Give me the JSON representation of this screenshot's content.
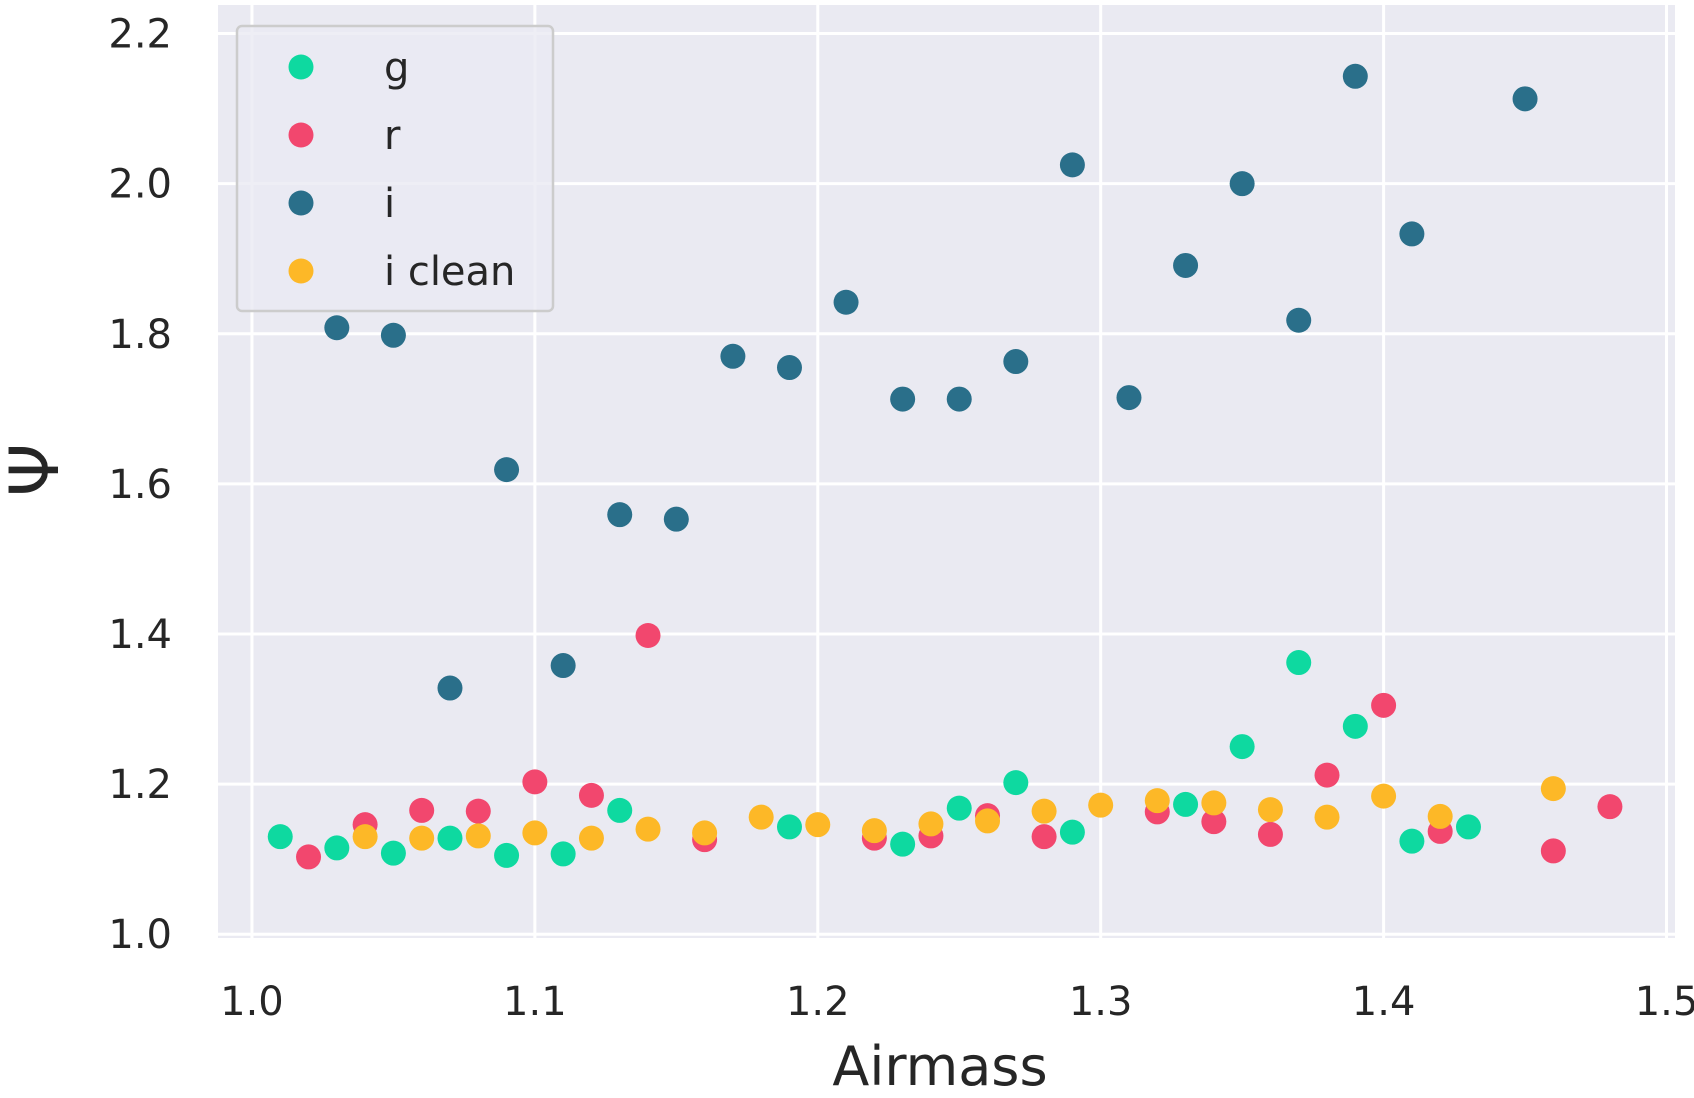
{
  "chart_data": {
    "type": "scatter",
    "xlabel": "Airmass",
    "ylabel": "Ψ",
    "xlim": [
      0.988,
      1.503
    ],
    "ylim": [
      0.995,
      2.238
    ],
    "xticks": [
      "1.0",
      "1.1",
      "1.2",
      "1.3",
      "1.4",
      "1.5"
    ],
    "yticks": [
      "1.0",
      "1.2",
      "1.4",
      "1.6",
      "1.8",
      "2.0",
      "2.2"
    ],
    "grid": true,
    "legend_position": "top-left",
    "series": [
      {
        "name": "g",
        "color": "#0ed9a0",
        "points": [
          [
            1.01,
            1.13
          ],
          [
            1.03,
            1.115
          ],
          [
            1.05,
            1.108
          ],
          [
            1.07,
            1.128
          ],
          [
            1.09,
            1.105
          ],
          [
            1.11,
            1.107
          ],
          [
            1.13,
            1.165
          ],
          [
            1.19,
            1.143
          ],
          [
            1.23,
            1.12
          ],
          [
            1.25,
            1.168
          ],
          [
            1.27,
            1.202
          ],
          [
            1.29,
            1.136
          ],
          [
            1.33,
            1.173
          ],
          [
            1.35,
            1.25
          ],
          [
            1.37,
            1.362
          ],
          [
            1.39,
            1.277
          ],
          [
            1.41,
            1.124
          ],
          [
            1.43,
            1.143
          ]
        ]
      },
      {
        "name": "r",
        "color": "#f2476e",
        "points": [
          [
            1.02,
            1.103
          ],
          [
            1.04,
            1.146
          ],
          [
            1.06,
            1.165
          ],
          [
            1.08,
            1.164
          ],
          [
            1.1,
            1.203
          ],
          [
            1.12,
            1.185
          ],
          [
            1.14,
            1.398
          ],
          [
            1.16,
            1.126
          ],
          [
            1.22,
            1.128
          ],
          [
            1.24,
            1.131
          ],
          [
            1.26,
            1.158
          ],
          [
            1.28,
            1.13
          ],
          [
            1.32,
            1.163
          ],
          [
            1.34,
            1.15
          ],
          [
            1.36,
            1.133
          ],
          [
            1.38,
            1.212
          ],
          [
            1.4,
            1.305
          ],
          [
            1.42,
            1.137
          ],
          [
            1.46,
            1.111
          ],
          [
            1.48,
            1.17
          ]
        ]
      },
      {
        "name": "i",
        "color": "#2a6f8a",
        "points": [
          [
            1.03,
            1.808
          ],
          [
            1.05,
            1.798
          ],
          [
            1.07,
            1.328
          ],
          [
            1.09,
            1.619
          ],
          [
            1.11,
            1.358
          ],
          [
            1.13,
            1.559
          ],
          [
            1.15,
            1.553
          ],
          [
            1.17,
            1.77
          ],
          [
            1.19,
            1.755
          ],
          [
            1.21,
            1.842
          ],
          [
            1.23,
            1.713
          ],
          [
            1.25,
            1.713
          ],
          [
            1.27,
            1.763
          ],
          [
            1.29,
            2.025
          ],
          [
            1.31,
            1.715
          ],
          [
            1.33,
            1.891
          ],
          [
            1.35,
            2.0
          ],
          [
            1.37,
            1.818
          ],
          [
            1.39,
            2.143
          ],
          [
            1.41,
            1.933
          ],
          [
            1.45,
            2.113
          ]
        ]
      },
      {
        "name": "i clean",
        "color": "#fdb827",
        "points": [
          [
            1.04,
            1.13
          ],
          [
            1.06,
            1.128
          ],
          [
            1.08,
            1.131
          ],
          [
            1.1,
            1.135
          ],
          [
            1.12,
            1.128
          ],
          [
            1.14,
            1.14
          ],
          [
            1.16,
            1.135
          ],
          [
            1.18,
            1.156
          ],
          [
            1.2,
            1.146
          ],
          [
            1.22,
            1.138
          ],
          [
            1.24,
            1.147
          ],
          [
            1.26,
            1.151
          ],
          [
            1.28,
            1.164
          ],
          [
            1.3,
            1.172
          ],
          [
            1.32,
            1.178
          ],
          [
            1.34,
            1.175
          ],
          [
            1.36,
            1.166
          ],
          [
            1.38,
            1.156
          ],
          [
            1.4,
            1.184
          ],
          [
            1.42,
            1.157
          ],
          [
            1.46,
            1.194
          ]
        ]
      }
    ]
  }
}
